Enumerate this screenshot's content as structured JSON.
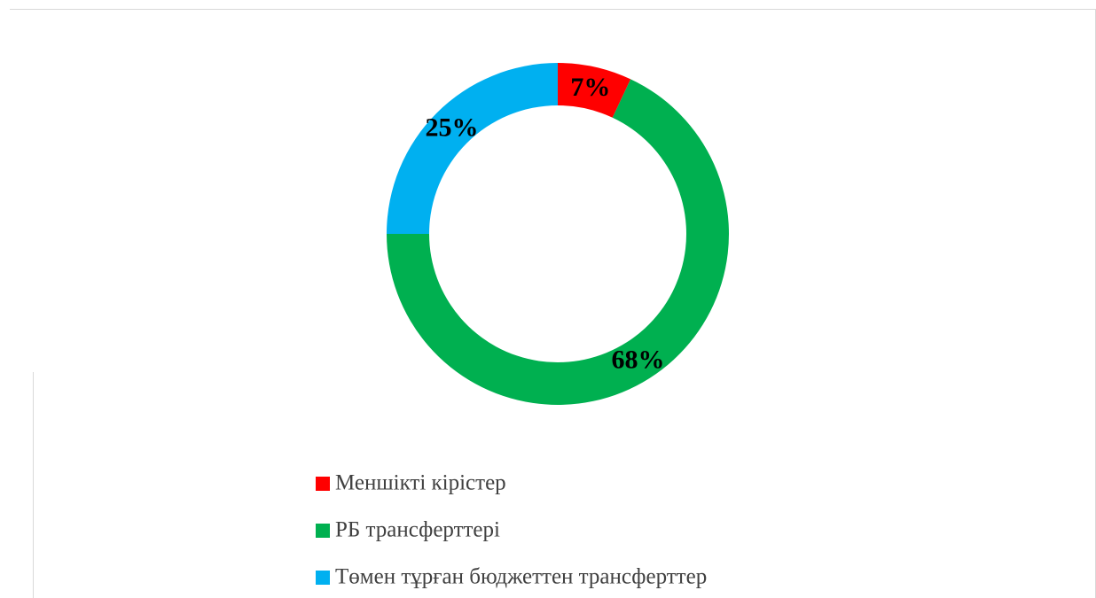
{
  "chart_data": {
    "type": "donut",
    "categories": [
      "Меншікті кірістер",
      "РБ трансферттері",
      "Төмен тұрған бюджеттен трансферттер"
    ],
    "values": [
      7,
      68,
      25
    ],
    "value_labels": [
      "7%",
      "68%",
      "25%"
    ],
    "colors": [
      "#ff0000",
      "#00b050",
      "#00b0f0"
    ],
    "legend": "bottom"
  }
}
